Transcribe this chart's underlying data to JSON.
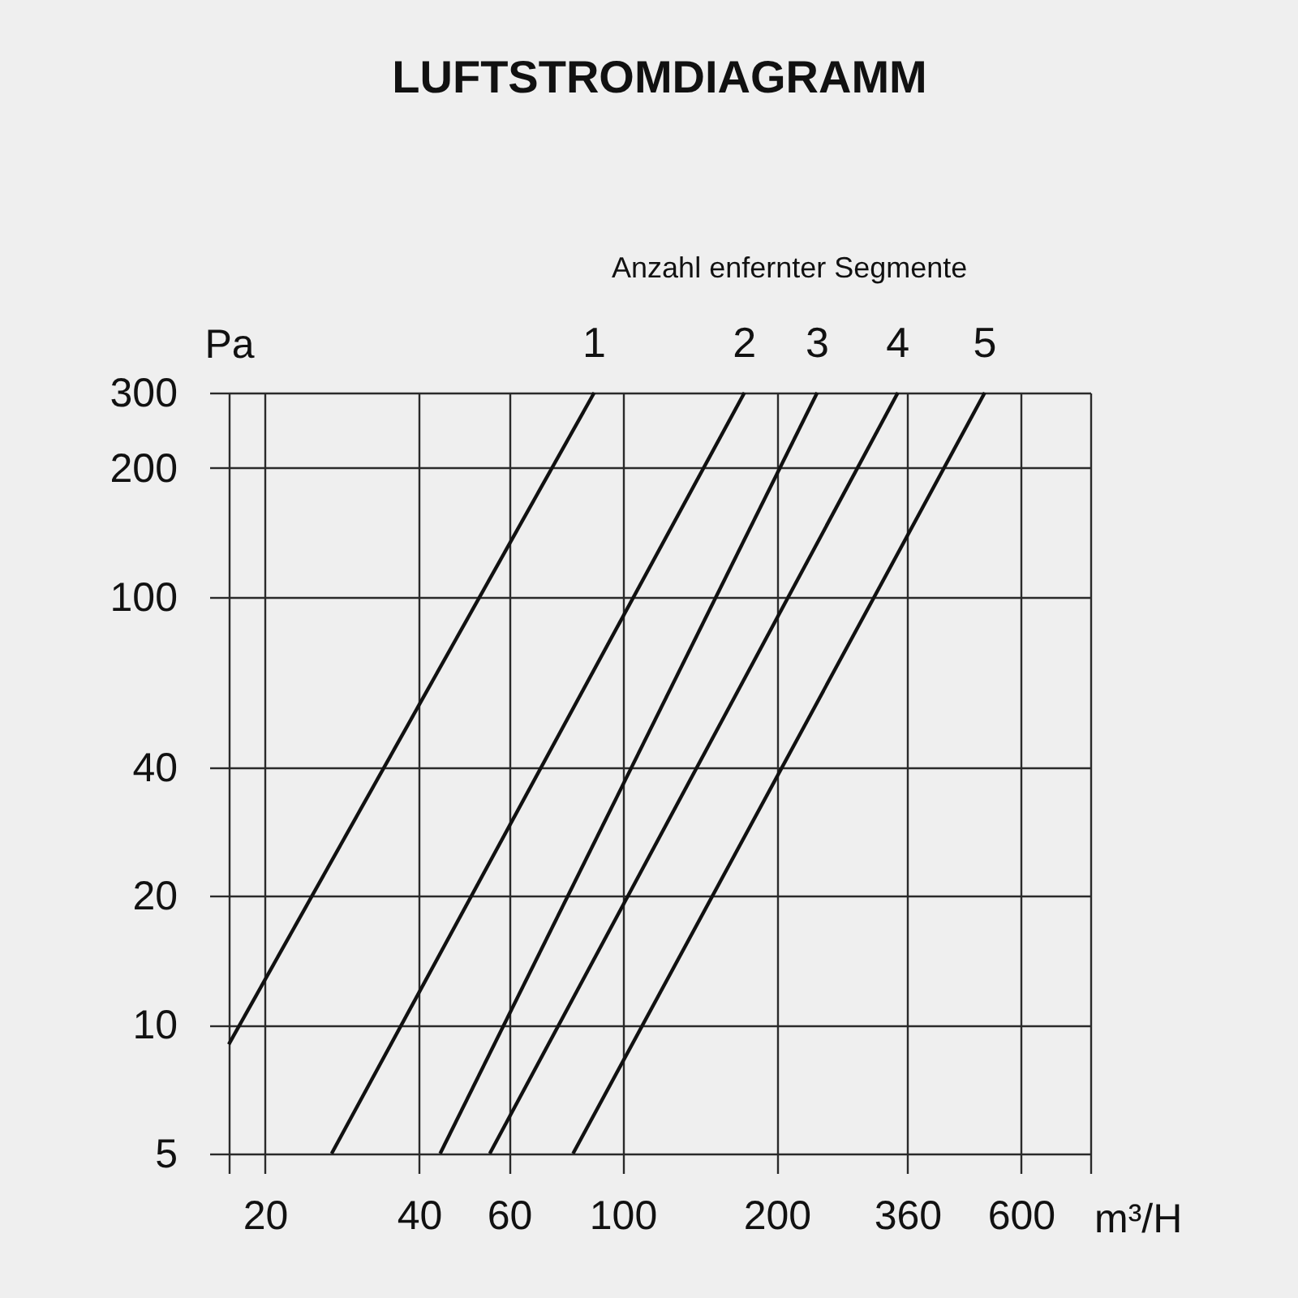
{
  "chart_data": {
    "type": "line",
    "title": "LUFTSTROMDIAGRAMM",
    "legend_title": "Anzahl enfernter Segmente",
    "xlabel": "m³/H",
    "ylabel": "Pa",
    "log": "xy",
    "grid": true,
    "line_style": "solid",
    "xlim": [
      17,
      820
    ],
    "xticks": [
      {
        "value": 17,
        "label": null
      },
      20,
      40,
      60,
      100,
      200,
      360,
      600,
      {
        "value": 820,
        "label": null
      }
    ],
    "ylim": [
      5,
      300
    ],
    "yticks": [
      5,
      10,
      20,
      40,
      100,
      200,
      300
    ],
    "series": [
      {
        "name": "1",
        "color": "#111111",
        "x": [
          17,
          88
        ],
        "values": [
          9,
          300
        ]
      },
      {
        "name": "2",
        "color": "#111111",
        "x": [
          27,
          173
        ],
        "values": [
          5,
          300
        ]
      },
      {
        "name": "3",
        "color": "#111111",
        "x": [
          44,
          240
        ],
        "values": [
          5,
          300
        ]
      },
      {
        "name": "4",
        "color": "#111111",
        "x": [
          55,
          345
        ],
        "values": [
          5,
          300
        ]
      },
      {
        "name": "5",
        "color": "#111111",
        "x": [
          80,
          510
        ],
        "values": [
          5,
          300
        ]
      }
    ]
  }
}
